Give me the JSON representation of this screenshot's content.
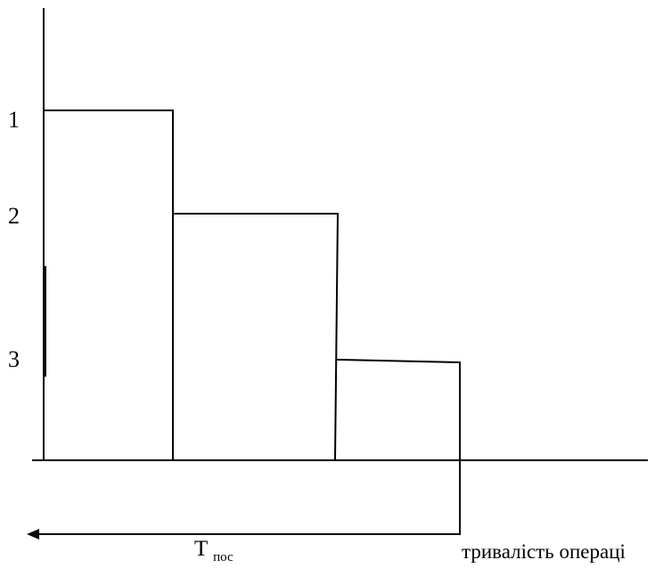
{
  "diagram": {
    "operation_labels": [
      "1",
      "2",
      "3"
    ],
    "duration_symbol": "T",
    "duration_subscript": "пос",
    "axis_label": "тривалість операці",
    "colors": {
      "line": "#000000",
      "background": "#ffffff"
    }
  }
}
